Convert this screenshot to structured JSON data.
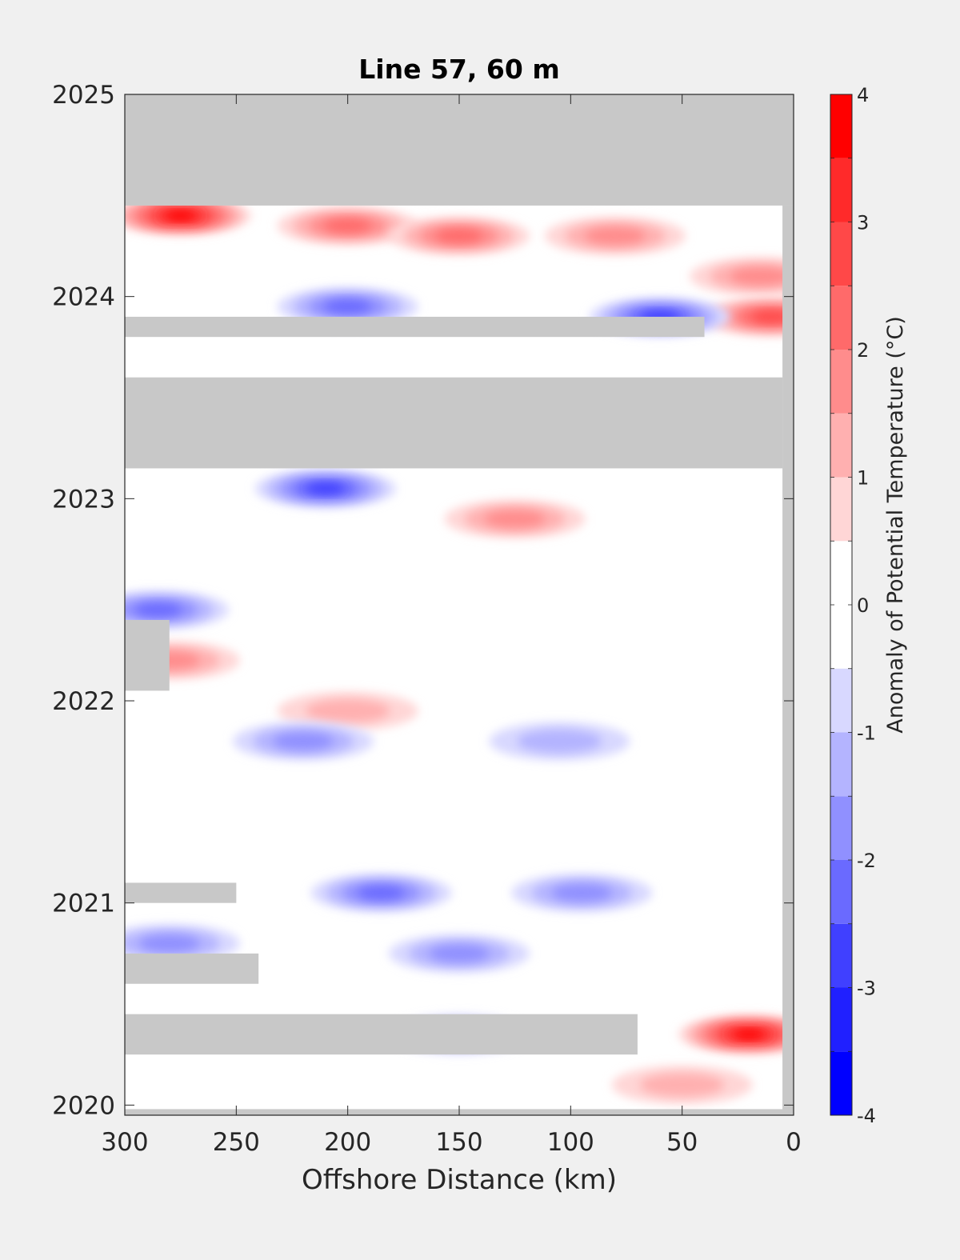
{
  "chart_data": {
    "type": "heatmap",
    "title": "Line 57, 60 m",
    "xlabel": "Offshore Distance (km)",
    "ylabel": "",
    "colorbar_label": "Anomaly of Potential Temperature (°C)",
    "x_reversed": true,
    "xlim": [
      0,
      300
    ],
    "ylim": [
      2019.95,
      2025
    ],
    "xticks": [
      300,
      250,
      200,
      150,
      100,
      50,
      0
    ],
    "yticks": [
      2020,
      2021,
      2022,
      2023,
      2024,
      2025
    ],
    "clim": [
      -4,
      4
    ],
    "colorbar_ticks": [
      -4,
      -3,
      -2,
      -1,
      0,
      1,
      2,
      3,
      4
    ],
    "levels": [
      -4,
      -3.5,
      -3,
      -2.5,
      -2,
      -1.5,
      -1,
      -0.5,
      0,
      0.5,
      1,
      1.5,
      2,
      2.5,
      3,
      3.5,
      4
    ],
    "level_colors": [
      "#0000ff",
      "#2020ff",
      "#4040ff",
      "#6a6aff",
      "#9090ff",
      "#b4b4ff",
      "#d8d8ff",
      "#ffffff",
      "#ffffff",
      "#ffd6d6",
      "#ffb0b0",
      "#ff8c8c",
      "#ff6a6a",
      "#ff4848",
      "#ff2a2a",
      "#ff0000"
    ],
    "nodata_color": "#c8c8c8",
    "cells": [
      {
        "x": 275,
        "y": 2024.4,
        "value": 3.5
      },
      {
        "x": 200,
        "y": 2024.35,
        "value": 2.0
      },
      {
        "x": 150,
        "y": 2024.3,
        "value": 2.0
      },
      {
        "x": 80,
        "y": 2024.3,
        "value": 1.5
      },
      {
        "x": 15,
        "y": 2024.1,
        "value": 1.5
      },
      {
        "x": 10,
        "y": 2023.9,
        "value": 2.5
      },
      {
        "x": 200,
        "y": 2023.95,
        "value": -2.0
      },
      {
        "x": 60,
        "y": 2023.9,
        "value": -2.5
      },
      {
        "x": 210,
        "y": 2023.05,
        "value": -2.5
      },
      {
        "x": 125,
        "y": 2022.9,
        "value": 1.5
      },
      {
        "x": 285,
        "y": 2022.45,
        "value": -2.0
      },
      {
        "x": 280,
        "y": 2022.2,
        "value": 1.5
      },
      {
        "x": 200,
        "y": 2021.95,
        "value": 1.0
      },
      {
        "x": 220,
        "y": 2021.8,
        "value": -1.5
      },
      {
        "x": 105,
        "y": 2021.8,
        "value": -1.0
      },
      {
        "x": 185,
        "y": 2021.05,
        "value": -2.0
      },
      {
        "x": 95,
        "y": 2021.05,
        "value": -1.5
      },
      {
        "x": 150,
        "y": 2020.75,
        "value": -1.5
      },
      {
        "x": 280,
        "y": 2020.8,
        "value": -1.5
      },
      {
        "x": 150,
        "y": 2020.35,
        "value": -1.5
      },
      {
        "x": 20,
        "y": 2020.35,
        "value": 3.5
      },
      {
        "x": 50,
        "y": 2020.1,
        "value": 1.0
      }
    ],
    "nodata_regions": [
      {
        "x": [
          0,
          300
        ],
        "y": [
          2024.45,
          2025
        ]
      },
      {
        "x": [
          5,
          300
        ],
        "y": [
          2023.15,
          2023.6
        ]
      },
      {
        "x": [
          40,
          300
        ],
        "y": [
          2023.8,
          2023.9
        ]
      },
      {
        "x": [
          280,
          300
        ],
        "y": [
          2022.05,
          2022.4
        ]
      },
      {
        "x": [
          250,
          300
        ],
        "y": [
          2021.0,
          2021.1
        ]
      },
      {
        "x": [
          240,
          300
        ],
        "y": [
          2020.6,
          2020.75
        ]
      },
      {
        "x": [
          70,
          300
        ],
        "y": [
          2020.25,
          2020.45
        ]
      },
      {
        "x": [
          0,
          5
        ],
        "y": [
          2019.95,
          2024.45
        ]
      },
      {
        "x": [
          0,
          300
        ],
        "y": [
          2019.95,
          2019.98
        ]
      }
    ]
  }
}
